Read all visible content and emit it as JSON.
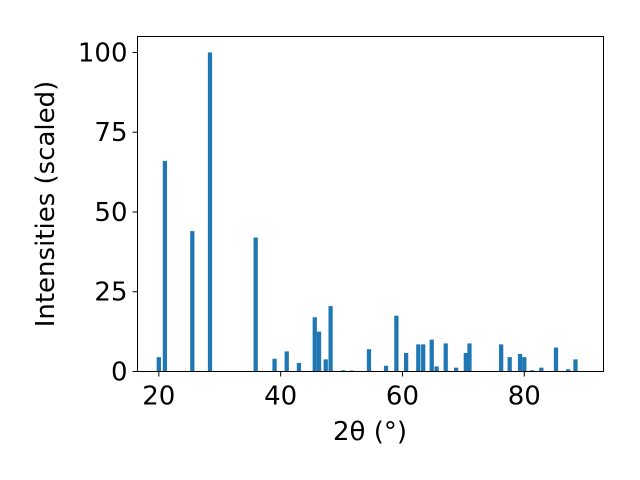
{
  "chart_data": {
    "type": "bar",
    "title": "",
    "xlabel": "2θ (°)",
    "ylabel": "Intensities (scaled)",
    "xlim": [
      16.5,
      93
    ],
    "ylim": [
      0,
      105
    ],
    "xticks": [
      20,
      40,
      60,
      80
    ],
    "yticks": [
      0,
      25,
      50,
      75,
      100
    ],
    "bar_width": 0.7,
    "grid": false,
    "color": "#1f77b4",
    "x": [
      20.0,
      21.0,
      25.5,
      28.4,
      35.9,
      39.0,
      41.0,
      43.0,
      45.6,
      46.3,
      47.4,
      48.2,
      50.3,
      51.7,
      54.5,
      57.3,
      59.0,
      60.6,
      62.6,
      63.4,
      64.8,
      65.6,
      67.1,
      68.8,
      70.4,
      71.0,
      76.2,
      77.6,
      79.3,
      80.0,
      81.3,
      82.8,
      85.2,
      87.2,
      88.4
    ],
    "values": [
      4.5,
      66,
      44,
      100,
      42,
      4,
      6.3,
      2.7,
      17,
      12.5,
      3.8,
      20.5,
      0.4,
      0.3,
      7,
      1.8,
      17.5,
      5.8,
      8.5,
      8.5,
      10,
      1.6,
      8.8,
      1.2,
      5.8,
      8.8,
      8.5,
      4.5,
      5.5,
      4.5,
      0.4,
      1.2,
      7.5,
      0.7,
      3.8
    ]
  }
}
